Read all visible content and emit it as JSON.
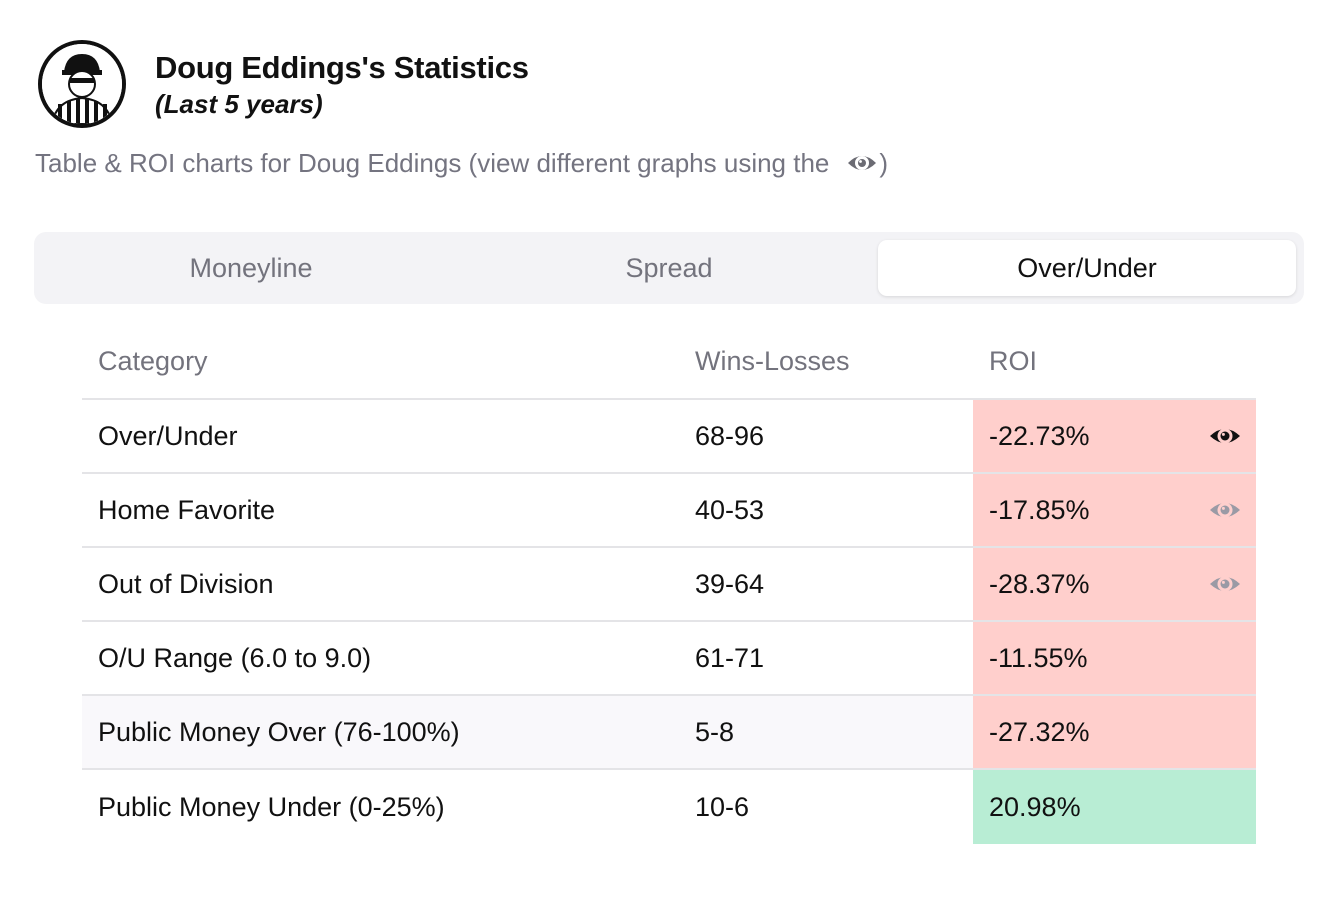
{
  "header": {
    "title": "Doug Eddings's Statistics",
    "subtitle": "(Last 5 years)",
    "avatar_icon": "referee-avatar-icon"
  },
  "description": {
    "text": "Table & ROI charts for Doug Eddings (view different graphs using the",
    "close_paren": ")",
    "icon": "eye-icon"
  },
  "tabs": [
    {
      "label": "Moneyline",
      "active": false
    },
    {
      "label": "Spread",
      "active": false
    },
    {
      "label": "Over/Under",
      "active": true
    }
  ],
  "table": {
    "columns": [
      "Category",
      "Wins-Losses",
      "ROI"
    ],
    "rows": [
      {
        "category": "Over/Under",
        "record": "68-96",
        "roi": "-22.73%",
        "status": "negative",
        "eye": "active"
      },
      {
        "category": "Home Favorite",
        "record": "40-53",
        "roi": "-17.85%",
        "status": "negative",
        "eye": "inactive"
      },
      {
        "category": "Out of Division",
        "record": "39-64",
        "roi": "-28.37%",
        "status": "negative",
        "eye": "inactive"
      },
      {
        "category": "O/U Range (6.0 to 9.0)",
        "record": "61-71",
        "roi": "-11.55%",
        "status": "negative",
        "eye": "none"
      },
      {
        "category": "Public Money Over (76-100%)",
        "record": "5-8",
        "roi": "-27.32%",
        "status": "negative",
        "eye": "none"
      },
      {
        "category": "Public Money Under (0-25%)",
        "record": "10-6",
        "roi": "20.98%",
        "status": "positive",
        "eye": "none"
      }
    ]
  },
  "colors": {
    "negative_bg": "#ffcfcc",
    "positive_bg": "#b8edd4",
    "eye_active": "#111111",
    "eye_inactive": "#9a9aa5"
  }
}
